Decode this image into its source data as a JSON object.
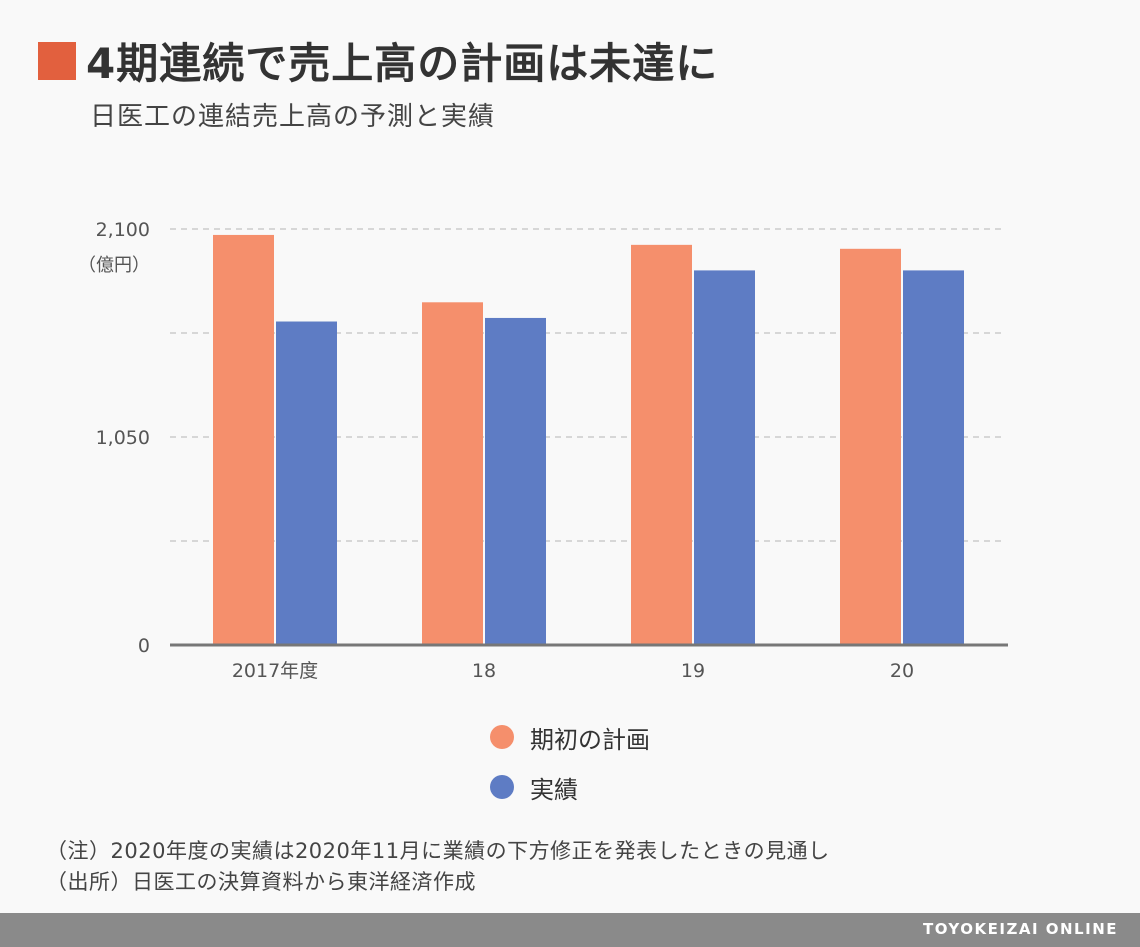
{
  "header": {
    "title": "4期連続で売上高の計画は未達に",
    "subtitle": "日医工の連結売上高の予測と実績"
  },
  "colors": {
    "accent": "#e2603e",
    "plan": "#f58f6c",
    "actual": "#5e7cc4",
    "grid": "#cccccc",
    "axis": "#777777"
  },
  "chart_data": {
    "type": "bar",
    "categories": [
      "2017年度",
      "18",
      "19",
      "20"
    ],
    "series": [
      {
        "name": "期初の計画",
        "values": [
          2070,
          1730,
          2020,
          2000
        ]
      },
      {
        "name": "実績",
        "values": [
          1633,
          1651,
          1891,
          1891
        ]
      }
    ],
    "ylim": [
      0,
      2100
    ],
    "yticks": [
      "0",
      "1,050",
      "2,100"
    ],
    "yticks_values": [
      0,
      1050,
      2100
    ],
    "unit_label": "（億円）",
    "grid": true,
    "legend_position": "bottom"
  },
  "notes": [
    "（注）2020年度の実績は2020年11月に業績の下方修正を発表したときの見通し",
    "（出所）日医工の決算資料から東洋経済作成"
  ],
  "footer": {
    "brand": "TOYOKEIZAI ONLINE"
  }
}
